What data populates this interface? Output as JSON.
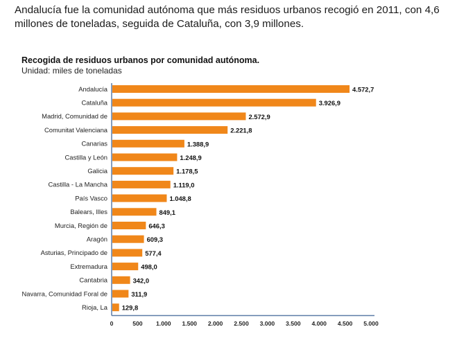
{
  "intro_text": "Andalucía fue la comunidad autónoma que más residuos urbanos recogió en 2011, con 4,6 millones de toneladas, seguida de Cataluña, con 3,9 millones.",
  "chart_data": {
    "type": "bar",
    "orientation": "horizontal",
    "title": "Recogida de residuos urbanos por comunidad autónoma.",
    "subtitle": "Unidad: miles de toneladas",
    "xlabel": "",
    "ylabel": "",
    "xlim": [
      0,
      5000
    ],
    "grid": false,
    "bar_color": "#F0871A",
    "axis_color": "#5B7BA6",
    "categories": [
      "Andalucía",
      "Cataluña",
      "Madrid, Comunidad de",
      "Comunitat Valenciana",
      "Canarias",
      "Castilla y León",
      "Galicia",
      "Castilla - La Mancha",
      "País Vasco",
      "Balears, Illes",
      "Murcia, Región de",
      "Aragón",
      "Asturias, Principado de",
      "Extremadura",
      "Cantabria",
      "Navarra, Comunidad Foral de",
      "Rioja, La"
    ],
    "values": [
      4572.7,
      3926.9,
      2572.9,
      2221.8,
      1388.9,
      1248.9,
      1178.5,
      1119.0,
      1048.8,
      849.1,
      646.3,
      609.3,
      577.4,
      498.0,
      342.0,
      311.9,
      129.8
    ],
    "value_labels": [
      "4.572,7",
      "3.926,9",
      "2.572,9",
      "2.221,8",
      "1.388,9",
      "1.248,9",
      "1.178,5",
      "1.119,0",
      "1.048,8",
      "849,1",
      "646,3",
      "609,3",
      "577,4",
      "498,0",
      "342,0",
      "311,9",
      "129,8"
    ],
    "ticks": [
      0,
      500,
      1000,
      1500,
      2000,
      2500,
      3000,
      3500,
      4000,
      4500,
      5000
    ],
    "tick_labels": [
      "0",
      "500",
      "1.000",
      "1.500",
      "2.000",
      "2.500",
      "3.000",
      "3.500",
      "4.000",
      "4.500",
      "5.000"
    ]
  }
}
